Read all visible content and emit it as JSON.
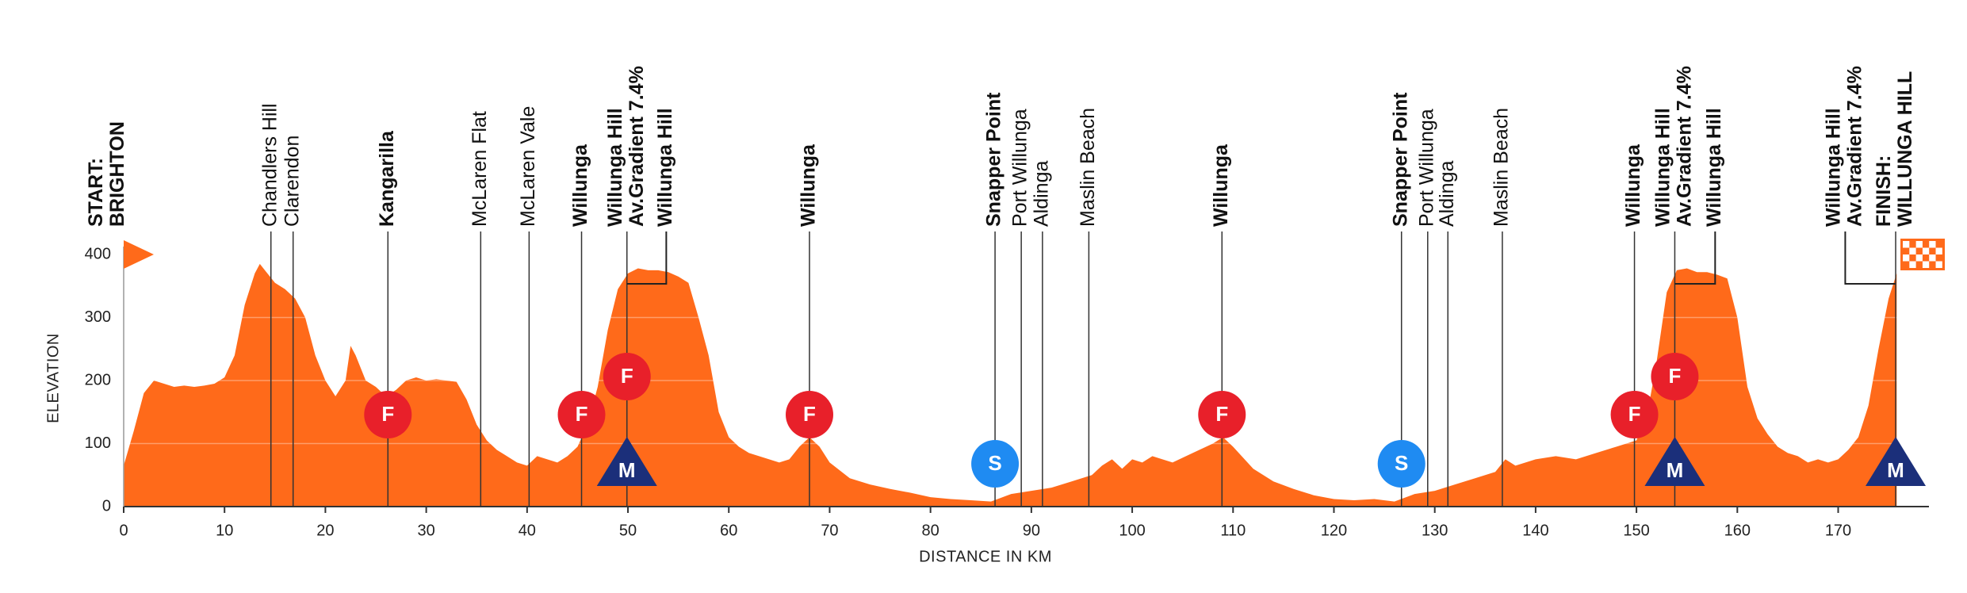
{
  "chart_data": {
    "type": "area",
    "color": "#ff6a1a",
    "x_label": "DISTANCE IN KM",
    "y_label": "ELEVATION",
    "xlim": [
      0,
      179
    ],
    "ylim": [
      0,
      400
    ],
    "xticks": [
      0,
      10,
      20,
      30,
      40,
      50,
      60,
      70,
      80,
      90,
      100,
      110,
      120,
      130,
      140,
      150,
      160,
      170
    ],
    "yticks": [
      0,
      100,
      200,
      300,
      400
    ],
    "grid": true,
    "x": [
      0,
      1,
      2,
      3,
      4,
      5,
      6,
      7,
      8,
      9,
      10,
      11,
      12,
      13,
      13.5,
      14,
      15,
      16,
      17,
      18,
      19,
      20,
      21,
      22,
      22.5,
      23,
      24,
      25,
      26,
      27,
      28,
      29,
      30,
      31,
      32,
      33,
      34,
      35,
      36,
      37,
      38,
      39,
      40,
      41,
      42,
      43,
      44,
      45,
      46,
      47,
      48,
      49,
      50,
      51,
      52,
      53,
      54,
      55,
      56,
      57,
      58,
      59,
      60,
      61,
      62,
      63,
      64,
      65,
      66,
      67,
      68,
      69,
      70,
      72,
      74,
      76,
      78,
      80,
      82,
      84,
      86,
      88,
      90,
      92,
      94,
      96,
      97,
      98,
      99,
      100,
      101,
      102,
      104,
      106,
      108,
      109,
      110,
      112,
      114,
      116,
      118,
      120,
      122,
      124,
      126,
      128,
      130,
      132,
      134,
      136,
      137,
      138,
      140,
      142,
      144,
      146,
      148,
      150,
      151,
      152,
      153,
      154,
      155,
      156,
      157,
      158,
      159,
      160,
      161,
      162,
      163,
      164,
      165,
      166,
      167,
      168,
      169,
      170,
      171,
      172,
      173,
      174,
      175,
      175.8
    ],
    "values": [
      65,
      120,
      180,
      200,
      195,
      190,
      192,
      190,
      192,
      195,
      205,
      240,
      320,
      370,
      385,
      375,
      355,
      345,
      330,
      300,
      240,
      200,
      175,
      200,
      255,
      240,
      200,
      190,
      175,
      185,
      200,
      205,
      200,
      202,
      200,
      198,
      170,
      130,
      105,
      90,
      80,
      70,
      65,
      80,
      75,
      70,
      80,
      95,
      130,
      190,
      280,
      345,
      370,
      378,
      375,
      375,
      372,
      365,
      355,
      300,
      240,
      150,
      110,
      95,
      85,
      80,
      75,
      70,
      75,
      95,
      110,
      95,
      70,
      45,
      35,
      28,
      22,
      15,
      12,
      10,
      8,
      20,
      25,
      30,
      40,
      50,
      65,
      75,
      60,
      75,
      70,
      80,
      70,
      85,
      100,
      110,
      95,
      60,
      40,
      28,
      18,
      12,
      10,
      12,
      8,
      20,
      25,
      35,
      45,
      55,
      75,
      65,
      75,
      80,
      75,
      85,
      95,
      105,
      140,
      230,
      340,
      375,
      378,
      372,
      372,
      368,
      362,
      300,
      190,
      140,
      115,
      95,
      85,
      80,
      70,
      75,
      70,
      75,
      90,
      110,
      160,
      250,
      330,
      370
    ],
    "waypoints": [
      {
        "km": 0,
        "lines": [
          "START:",
          "BRIGHTON"
        ],
        "bold": true,
        "line": false
      },
      {
        "km": 14.6,
        "lines": [
          "Chandlers Hill"
        ],
        "bold": false
      },
      {
        "km": 16.8,
        "lines": [
          "Clarendon"
        ],
        "bold": false
      },
      {
        "km": 26.2,
        "lines": [
          "Kangarilla"
        ],
        "bold": true
      },
      {
        "km": 35.4,
        "lines": [
          "McLaren Flat"
        ],
        "bold": false
      },
      {
        "km": 40.2,
        "lines": [
          "McLaren Vale"
        ],
        "bold": false
      },
      {
        "km": 45.4,
        "lines": [
          "Willunga"
        ],
        "bold": true
      },
      {
        "km": 49.9,
        "lines": [
          "Willunga Hill",
          "Av.Gradient 7.4%"
        ],
        "bold": true
      },
      {
        "km": 53.8,
        "lines": [
          "Willunga Hill"
        ],
        "bold": true,
        "leader": "prev"
      },
      {
        "km": 68.0,
        "lines": [
          "Willunga"
        ],
        "bold": true
      },
      {
        "km": 86.4,
        "lines": [
          "Snapper Point"
        ],
        "bold": true
      },
      {
        "km": 89.0,
        "lines": [
          "Port Willunga"
        ],
        "bold": false
      },
      {
        "km": 91.1,
        "lines": [
          "Aldinga"
        ],
        "bold": false
      },
      {
        "km": 95.7,
        "lines": [
          "Maslin Beach"
        ],
        "bold": false
      },
      {
        "km": 108.9,
        "lines": [
          "Willunga"
        ],
        "bold": true
      },
      {
        "km": 126.7,
        "lines": [
          "Snapper Point"
        ],
        "bold": true
      },
      {
        "km": 129.3,
        "lines": [
          "Port Willunga"
        ],
        "bold": false
      },
      {
        "km": 131.3,
        "lines": [
          "Aldinga"
        ],
        "bold": false
      },
      {
        "km": 136.7,
        "lines": [
          "Maslin Beach"
        ],
        "bold": false
      },
      {
        "km": 149.8,
        "lines": [
          "Willunga"
        ],
        "bold": true
      },
      {
        "km": 153.8,
        "lines": [
          "Willunga Hill",
          "Av.Gradient 7.4%"
        ],
        "bold": true
      },
      {
        "km": 157.8,
        "lines": [
          "Willunga Hill"
        ],
        "bold": true,
        "leader": "prev"
      },
      {
        "km": 170.7,
        "lines": [
          "Willunga Hill",
          "Av.Gradient 7.4%"
        ],
        "bold": true,
        "leader": "next"
      },
      {
        "km": 175.7,
        "lines": [
          "FINISH:",
          "WILLUNGA HILL"
        ],
        "bold": true
      }
    ],
    "markers": [
      {
        "km": 26.2,
        "label": "F",
        "kind": "sprint"
      },
      {
        "km": 45.4,
        "label": "F",
        "kind": "sprint"
      },
      {
        "km": 49.9,
        "label": "F",
        "kind": "sprint"
      },
      {
        "km": 68.0,
        "label": "F",
        "kind": "sprint"
      },
      {
        "km": 108.9,
        "label": "F",
        "kind": "sprint"
      },
      {
        "km": 149.8,
        "label": "F",
        "kind": "sprint"
      },
      {
        "km": 153.8,
        "label": "F",
        "kind": "sprint"
      },
      {
        "km": 86.4,
        "label": "S",
        "kind": "snapper"
      },
      {
        "km": 126.7,
        "label": "S",
        "kind": "snapper"
      },
      {
        "km": 49.9,
        "label": "M",
        "kind": "mountain"
      },
      {
        "km": 153.8,
        "label": "M",
        "kind": "mountain"
      },
      {
        "km": 175.7,
        "label": "M",
        "kind": "mountain"
      }
    ]
  }
}
